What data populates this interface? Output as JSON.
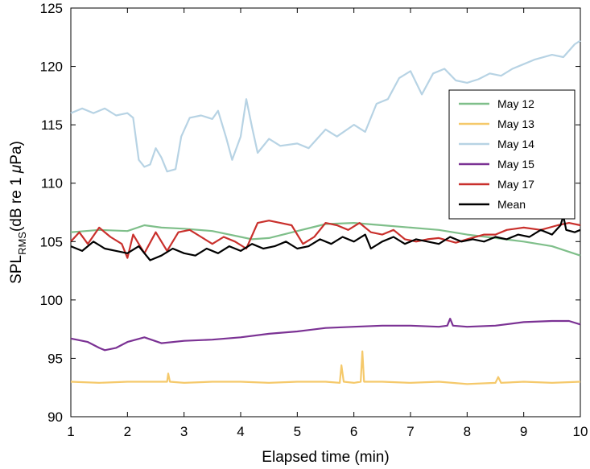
{
  "chart_data": {
    "type": "line",
    "xlabel": "Elapsed time (min)",
    "ylabel": {
      "main": "SPL",
      "subscript": "RMS",
      "unit_prefix": "(dB re 1 ",
      "unit_symbol": "μ",
      "unit_suffix": "Pa)"
    },
    "xlim": [
      1,
      10
    ],
    "ylim": [
      90,
      125
    ],
    "xticks": [
      1,
      2,
      3,
      4,
      5,
      6,
      7,
      8,
      9,
      10
    ],
    "yticks": [
      90,
      95,
      100,
      105,
      110,
      115,
      120,
      125
    ],
    "grid": false,
    "legend_position": "top-right",
    "series": [
      {
        "name": "May 12",
        "color": "#7fbf8a",
        "points": [
          [
            1,
            105.8
          ],
          [
            1.5,
            106.0
          ],
          [
            2,
            105.9
          ],
          [
            2.3,
            106.4
          ],
          [
            2.6,
            106.2
          ],
          [
            3,
            106.1
          ],
          [
            3.5,
            105.9
          ],
          [
            4,
            105.4
          ],
          [
            4.2,
            105.2
          ],
          [
            4.5,
            105.3
          ],
          [
            5,
            105.9
          ],
          [
            5.5,
            106.5
          ],
          [
            6,
            106.6
          ],
          [
            6.5,
            106.4
          ],
          [
            7,
            106.2
          ],
          [
            7.5,
            106.0
          ],
          [
            8,
            105.6
          ],
          [
            8.5,
            105.3
          ],
          [
            9,
            105.0
          ],
          [
            9.5,
            104.6
          ],
          [
            10,
            103.8
          ]
        ]
      },
      {
        "name": "May 13",
        "color": "#f5c96b",
        "points": [
          [
            1,
            93.0
          ],
          [
            1.5,
            92.9
          ],
          [
            2,
            93.0
          ],
          [
            2.5,
            93.0
          ],
          [
            2.7,
            93.0
          ],
          [
            2.72,
            93.7
          ],
          [
            2.75,
            93.0
          ],
          [
            3,
            92.9
          ],
          [
            3.5,
            93.0
          ],
          [
            4,
            93.0
          ],
          [
            4.5,
            92.9
          ],
          [
            5,
            93.0
          ],
          [
            5.5,
            93.0
          ],
          [
            5.75,
            92.9
          ],
          [
            5.78,
            94.4
          ],
          [
            5.82,
            93.0
          ],
          [
            6,
            92.9
          ],
          [
            6.12,
            93.0
          ],
          [
            6.15,
            95.6
          ],
          [
            6.18,
            93.0
          ],
          [
            6.5,
            93.0
          ],
          [
            7,
            92.9
          ],
          [
            7.5,
            93.0
          ],
          [
            8,
            92.8
          ],
          [
            8.5,
            92.9
          ],
          [
            8.55,
            93.4
          ],
          [
            8.6,
            92.9
          ],
          [
            9,
            93.0
          ],
          [
            9.5,
            92.9
          ],
          [
            10,
            93.0
          ]
        ]
      },
      {
        "name": "May 14",
        "color": "#b7d3e4",
        "points": [
          [
            1,
            116.0
          ],
          [
            1.2,
            116.4
          ],
          [
            1.4,
            116.0
          ],
          [
            1.6,
            116.4
          ],
          [
            1.8,
            115.8
          ],
          [
            2.0,
            116.0
          ],
          [
            2.1,
            115.6
          ],
          [
            2.2,
            112.0
          ],
          [
            2.3,
            111.4
          ],
          [
            2.4,
            111.6
          ],
          [
            2.5,
            113.0
          ],
          [
            2.6,
            112.2
          ],
          [
            2.7,
            111.0
          ],
          [
            2.85,
            111.2
          ],
          [
            2.95,
            114.0
          ],
          [
            3.1,
            115.6
          ],
          [
            3.3,
            115.8
          ],
          [
            3.5,
            115.5
          ],
          [
            3.6,
            116.2
          ],
          [
            3.75,
            113.8
          ],
          [
            3.85,
            112.0
          ],
          [
            4.0,
            114.0
          ],
          [
            4.1,
            117.2
          ],
          [
            4.2,
            114.8
          ],
          [
            4.3,
            112.6
          ],
          [
            4.5,
            113.8
          ],
          [
            4.7,
            113.2
          ],
          [
            5.0,
            113.4
          ],
          [
            5.2,
            113.0
          ],
          [
            5.5,
            114.6
          ],
          [
            5.7,
            114.0
          ],
          [
            6.0,
            115.0
          ],
          [
            6.2,
            114.4
          ],
          [
            6.4,
            116.8
          ],
          [
            6.6,
            117.2
          ],
          [
            6.8,
            119.0
          ],
          [
            7.0,
            119.6
          ],
          [
            7.2,
            117.6
          ],
          [
            7.4,
            119.4
          ],
          [
            7.6,
            119.8
          ],
          [
            7.8,
            118.8
          ],
          [
            8.0,
            118.6
          ],
          [
            8.2,
            118.9
          ],
          [
            8.4,
            119.4
          ],
          [
            8.6,
            119.2
          ],
          [
            8.8,
            119.8
          ],
          [
            9.0,
            120.2
          ],
          [
            9.2,
            120.6
          ],
          [
            9.5,
            121.0
          ],
          [
            9.7,
            120.8
          ],
          [
            9.9,
            121.9
          ],
          [
            10,
            122.2
          ]
        ]
      },
      {
        "name": "May 15",
        "color": "#7b3294",
        "points": [
          [
            1,
            96.7
          ],
          [
            1.3,
            96.4
          ],
          [
            1.5,
            95.9
          ],
          [
            1.6,
            95.7
          ],
          [
            1.8,
            95.9
          ],
          [
            2.0,
            96.4
          ],
          [
            2.3,
            96.8
          ],
          [
            2.6,
            96.3
          ],
          [
            3.0,
            96.5
          ],
          [
            3.5,
            96.6
          ],
          [
            4.0,
            96.8
          ],
          [
            4.5,
            97.1
          ],
          [
            5.0,
            97.3
          ],
          [
            5.5,
            97.6
          ],
          [
            6.0,
            97.7
          ],
          [
            6.5,
            97.8
          ],
          [
            7.0,
            97.8
          ],
          [
            7.5,
            97.7
          ],
          [
            7.65,
            97.8
          ],
          [
            7.7,
            98.4
          ],
          [
            7.75,
            97.8
          ],
          [
            8.0,
            97.7
          ],
          [
            8.5,
            97.8
          ],
          [
            9.0,
            98.1
          ],
          [
            9.5,
            98.2
          ],
          [
            9.8,
            98.2
          ],
          [
            10,
            97.9
          ]
        ]
      },
      {
        "name": "May 17",
        "color": "#c9302c",
        "points": [
          [
            1,
            105.0
          ],
          [
            1.15,
            105.8
          ],
          [
            1.3,
            104.8
          ],
          [
            1.5,
            106.2
          ],
          [
            1.7,
            105.4
          ],
          [
            1.9,
            104.8
          ],
          [
            2.0,
            103.6
          ],
          [
            2.1,
            105.6
          ],
          [
            2.3,
            104.0
          ],
          [
            2.5,
            105.8
          ],
          [
            2.7,
            104.2
          ],
          [
            2.9,
            105.8
          ],
          [
            3.1,
            106.0
          ],
          [
            3.3,
            105.4
          ],
          [
            3.5,
            104.8
          ],
          [
            3.7,
            105.4
          ],
          [
            3.9,
            105.0
          ],
          [
            4.1,
            104.4
          ],
          [
            4.3,
            106.6
          ],
          [
            4.5,
            106.8
          ],
          [
            4.7,
            106.6
          ],
          [
            4.9,
            106.4
          ],
          [
            5.1,
            104.8
          ],
          [
            5.3,
            105.4
          ],
          [
            5.5,
            106.6
          ],
          [
            5.7,
            106.4
          ],
          [
            5.9,
            106.0
          ],
          [
            6.1,
            106.6
          ],
          [
            6.3,
            105.8
          ],
          [
            6.5,
            105.6
          ],
          [
            6.7,
            106.0
          ],
          [
            6.9,
            105.2
          ],
          [
            7.1,
            105.0
          ],
          [
            7.3,
            105.2
          ],
          [
            7.5,
            105.3
          ],
          [
            7.8,
            104.9
          ],
          [
            8.0,
            105.2
          ],
          [
            8.3,
            105.6
          ],
          [
            8.5,
            105.6
          ],
          [
            8.7,
            106.0
          ],
          [
            9.0,
            106.2
          ],
          [
            9.3,
            106.0
          ],
          [
            9.6,
            106.4
          ],
          [
            9.8,
            106.6
          ],
          [
            10,
            106.4
          ]
        ]
      },
      {
        "name": "Mean",
        "color": "#000000",
        "points": [
          [
            1,
            104.6
          ],
          [
            1.2,
            104.2
          ],
          [
            1.4,
            105.0
          ],
          [
            1.6,
            104.4
          ],
          [
            1.8,
            104.2
          ],
          [
            2.0,
            104.0
          ],
          [
            2.2,
            104.6
          ],
          [
            2.4,
            103.4
          ],
          [
            2.6,
            103.8
          ],
          [
            2.8,
            104.4
          ],
          [
            3.0,
            104.0
          ],
          [
            3.2,
            103.8
          ],
          [
            3.4,
            104.4
          ],
          [
            3.6,
            104.0
          ],
          [
            3.8,
            104.6
          ],
          [
            4.0,
            104.2
          ],
          [
            4.2,
            104.8
          ],
          [
            4.4,
            104.4
          ],
          [
            4.6,
            104.6
          ],
          [
            4.8,
            105.0
          ],
          [
            5.0,
            104.4
          ],
          [
            5.2,
            104.6
          ],
          [
            5.4,
            105.2
          ],
          [
            5.6,
            104.8
          ],
          [
            5.8,
            105.4
          ],
          [
            6.0,
            105.0
          ],
          [
            6.2,
            105.6
          ],
          [
            6.3,
            104.4
          ],
          [
            6.5,
            105.0
          ],
          [
            6.7,
            105.4
          ],
          [
            6.9,
            104.8
          ],
          [
            7.1,
            105.2
          ],
          [
            7.3,
            105.0
          ],
          [
            7.5,
            104.8
          ],
          [
            7.7,
            105.4
          ],
          [
            7.9,
            105.0
          ],
          [
            8.1,
            105.2
          ],
          [
            8.3,
            105.0
          ],
          [
            8.5,
            105.4
          ],
          [
            8.7,
            105.2
          ],
          [
            8.9,
            105.6
          ],
          [
            9.1,
            105.4
          ],
          [
            9.3,
            106.0
          ],
          [
            9.5,
            105.6
          ],
          [
            9.65,
            106.4
          ],
          [
            9.7,
            107.2
          ],
          [
            9.75,
            106.0
          ],
          [
            9.9,
            105.8
          ],
          [
            10,
            106.0
          ]
        ]
      }
    ]
  }
}
